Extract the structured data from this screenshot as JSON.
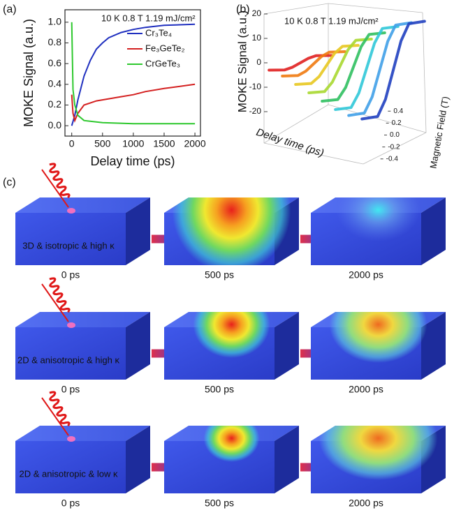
{
  "chart_data": [
    {
      "type": "line",
      "label": "(a)",
      "annotation": "10 K   0.8 T   1.19 mJ/cm²",
      "xlabel": "Delay time (ps)",
      "ylabel": "MOKE Signal (a.u.)",
      "xlim": [
        -110,
        2090
      ],
      "ylim": [
        -0.1,
        1.12
      ],
      "xticks": [
        0,
        500,
        1000,
        1500,
        2000
      ],
      "yticks": [
        {
          "value": 0,
          "label": "0.0"
        },
        0.2,
        0.4,
        0.6,
        0.8,
        {
          "value": 1,
          "label": "1.0"
        }
      ],
      "series": [
        {
          "name": "Cr₃Te₄",
          "color": "#1f2fbf",
          "x": [
            0,
            50,
            100,
            200,
            300,
            400,
            500,
            600,
            800,
            1000,
            1200,
            1500,
            2000
          ],
          "values": [
            0,
            0.1,
            0.25,
            0.48,
            0.63,
            0.74,
            0.8,
            0.85,
            0.9,
            0.93,
            0.95,
            0.97,
            0.98
          ]
        },
        {
          "name": "Fe₃GeTe₂",
          "color": "#d42020",
          "x": [
            0,
            20,
            50,
            100,
            200,
            400,
            600,
            800,
            1000,
            1200,
            1500,
            2000
          ],
          "values": [
            0.3,
            0.12,
            0.05,
            0.12,
            0.2,
            0.24,
            0.26,
            0.28,
            0.3,
            0.33,
            0.36,
            0.4
          ]
        },
        {
          "name": "CrGeTe₃",
          "color": "#2ec82e",
          "x": [
            0,
            20,
            50,
            100,
            200,
            500,
            1000,
            1500,
            2000
          ],
          "values": [
            1.0,
            0.35,
            0.2,
            0.1,
            0.05,
            0.03,
            0.02,
            0.02,
            0.02
          ]
        }
      ]
    },
    {
      "type": "line3d",
      "label": "(b)",
      "annotation": "10 K   0.8 T   1.19 mJ/cm²",
      "ylabel": "MOKE Signal (a.u.)",
      "xlabel": "Magnetic Field (T)",
      "zlabel": "Delay time (ps)",
      "ylim": [
        -20,
        20
      ],
      "yticks": [
        20,
        10,
        0,
        -10,
        -20
      ],
      "xlim": [
        -0.45,
        0.45
      ],
      "xticks": [
        0.4,
        0.2,
        {
          "value": 0,
          "label": "0.0"
        },
        -0.2,
        -0.4
      ],
      "x": [
        -0.4,
        -0.2,
        -0.1,
        0,
        0.1,
        0.2,
        0.4
      ],
      "series": [
        {
          "color": "#e02020",
          "values": [
            -3,
            -2.9,
            -1.8,
            0,
            1.8,
            2.9,
            3
          ]
        },
        {
          "color": "#f07a10",
          "values": [
            -5,
            -4.8,
            -3,
            0,
            3,
            4.8,
            5
          ]
        },
        {
          "color": "#e8c820",
          "values": [
            -8,
            -7.6,
            -4.8,
            0,
            4.8,
            7.6,
            8
          ]
        },
        {
          "color": "#a8d830",
          "values": [
            -11,
            -10.5,
            -6.6,
            0,
            6.6,
            10.5,
            11
          ]
        },
        {
          "color": "#30c060",
          "values": [
            -14,
            -13.3,
            -8.4,
            0,
            8.4,
            13.3,
            14
          ]
        },
        {
          "color": "#30c8d8",
          "values": [
            -17,
            -16.2,
            -10.2,
            0,
            10.2,
            16.2,
            17
          ]
        },
        {
          "color": "#40a0e8",
          "values": [
            -19,
            -18,
            -11.4,
            0,
            11.4,
            18,
            19
          ]
        },
        {
          "color": "#2040c0",
          "values": [
            -20,
            -19,
            -12,
            0,
            12,
            19,
            20
          ]
        }
      ]
    }
  ],
  "diagram": {
    "label": "(c)",
    "rows": [
      {
        "label": "3D & isotropic & high κ",
        "times": [
          "0 ps",
          "500 ps",
          "2000 ps"
        ]
      },
      {
        "label": "2D & anisotropic & high κ",
        "times": [
          "0 ps",
          "500 ps",
          "2000 ps"
        ]
      },
      {
        "label": "2D & anisotropic & low κ",
        "times": [
          "0 ps",
          "500 ps",
          "2000 ps"
        ]
      }
    ]
  }
}
